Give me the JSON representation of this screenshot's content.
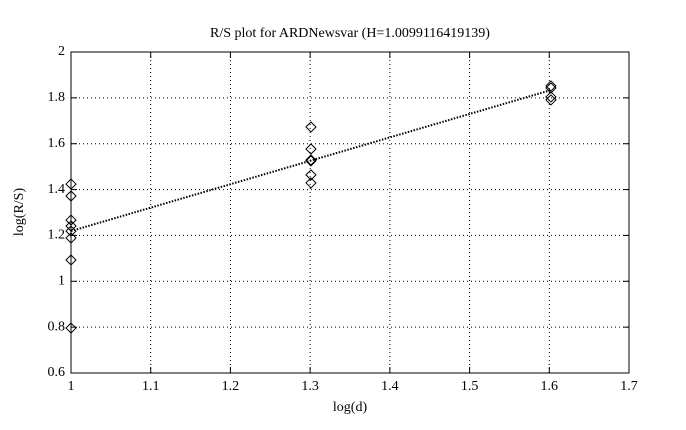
{
  "chart_data": {
    "type": "scatter",
    "title": "R/S plot for ARDNewsvar (H=1.0099116419139)",
    "x_label": "log(d)",
    "y_label": "log(R/S)",
    "xlim": [
      1,
      1.7
    ],
    "xticks": [
      1,
      1.1,
      1.2,
      1.3,
      1.4,
      1.5,
      1.6,
      1.7
    ],
    "ylim": [
      0.6,
      2
    ],
    "yticks": [
      0.6,
      0.8,
      1,
      1.2,
      1.4,
      1.6,
      1.8,
      2
    ],
    "grid": true,
    "series": [
      {
        "mode": "markers",
        "marker": "diamond",
        "color": "#000000",
        "x": [
          1,
          1,
          1,
          1,
          1,
          1,
          1,
          1,
          1.30103,
          1.30103,
          1.30103,
          1.30103,
          1.30103,
          1.30103,
          1.60206,
          1.60206,
          1.60206,
          1.60206
        ],
        "values": [
          1.424,
          1.372,
          1.267,
          1.241,
          1.219,
          1.189,
          1.093,
          0.796,
          1.673,
          1.577,
          1.529,
          1.525,
          1.464,
          1.429,
          1.852,
          1.843,
          1.804,
          1.791
        ]
      },
      {
        "mode": "line",
        "style": "dotted",
        "color": "#000000",
        "x": [
          1,
          1.60206
        ],
        "values": [
          1.219,
          1.834
        ]
      }
    ]
  }
}
